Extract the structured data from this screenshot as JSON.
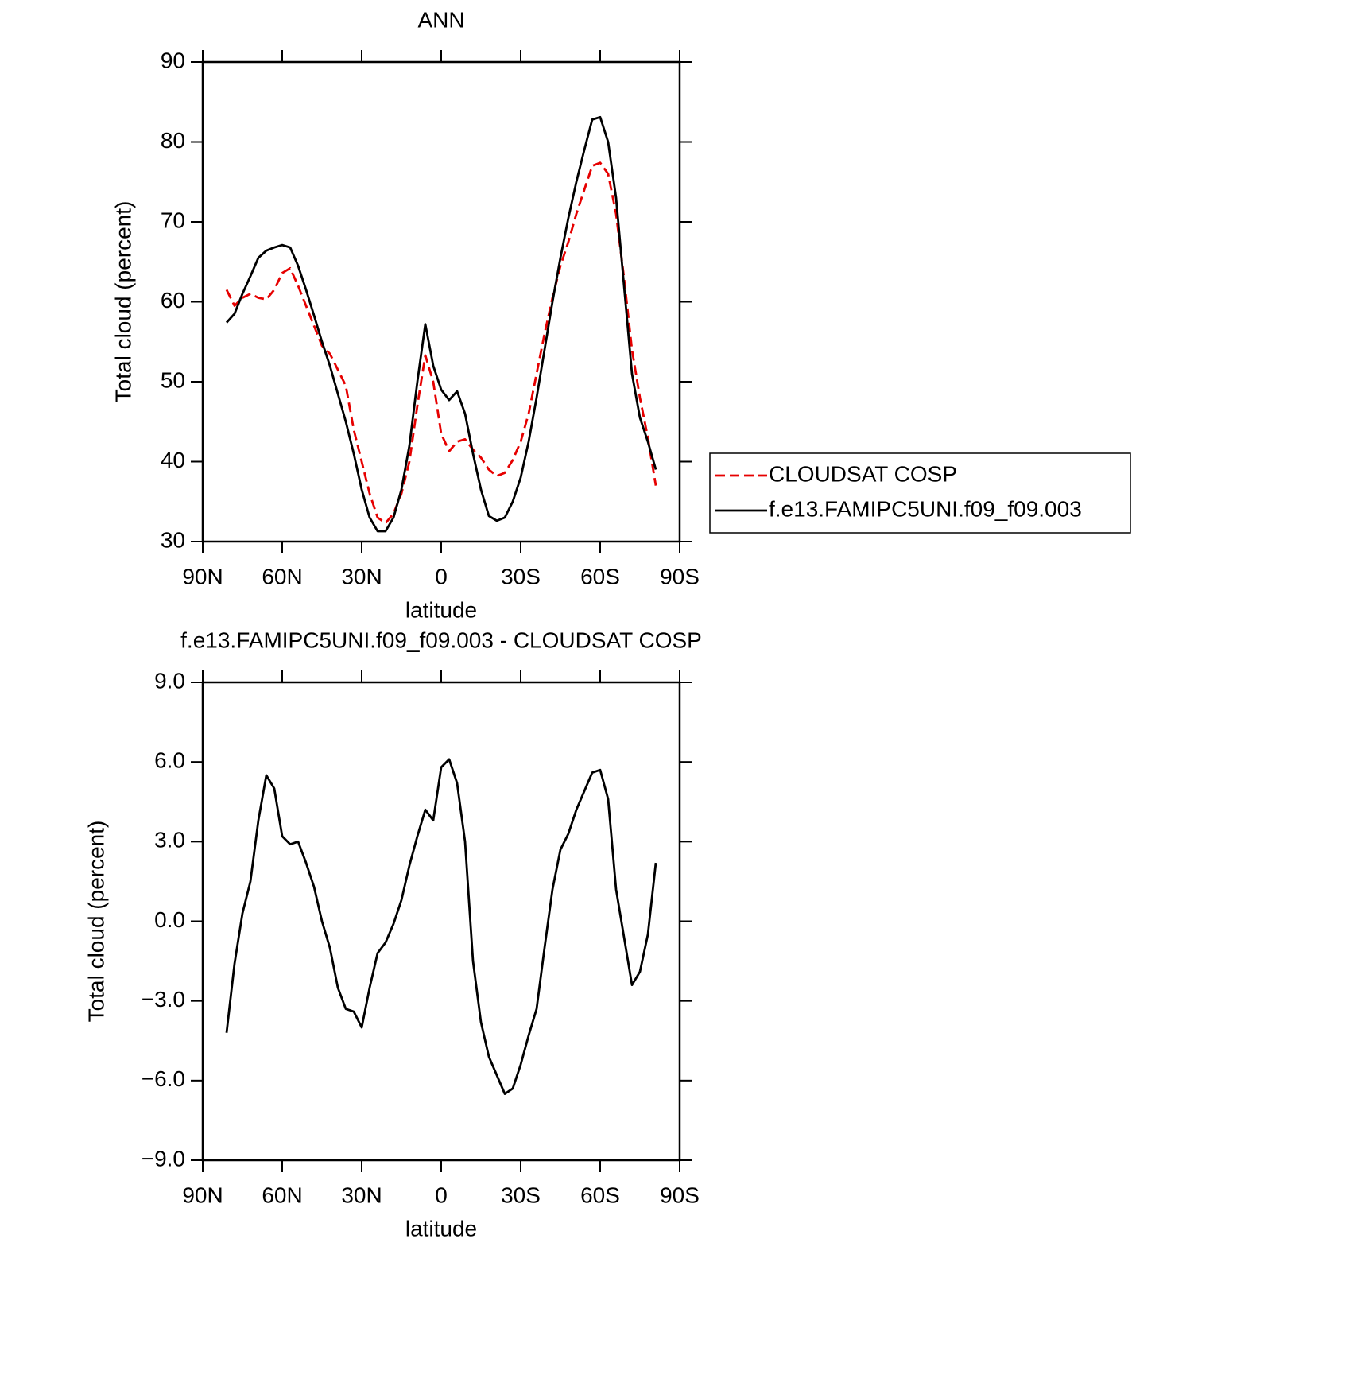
{
  "chart_data": [
    {
      "type": "line",
      "title": "ANN",
      "x_label": "latitude",
      "y_label": "Total cloud (percent)",
      "x": [
        81,
        78,
        75,
        72,
        69,
        66,
        63,
        60,
        57,
        54,
        51,
        48,
        45,
        42,
        39,
        36,
        33,
        30,
        27,
        24,
        21,
        18,
        15,
        12,
        9,
        6,
        3,
        0,
        -3,
        -6,
        -9,
        -12,
        -15,
        -18,
        -21,
        -24,
        -27,
        -30,
        -33,
        -36,
        -39,
        -42,
        -45,
        -48,
        -51,
        -54,
        -57,
        -60,
        -63,
        -66,
        -69,
        -72,
        -75,
        -78,
        -81
      ],
      "xlim": [
        90,
        -90
      ],
      "xticks": [
        {
          "value": 90,
          "label": "90N"
        },
        {
          "value": 60,
          "label": "60N"
        },
        {
          "value": 30,
          "label": "30N"
        },
        0,
        {
          "value": -30,
          "label": "30S"
        },
        {
          "value": -60,
          "label": "60S"
        },
        {
          "value": -90,
          "label": "90S"
        }
      ],
      "ylim": [
        30,
        90
      ],
      "yticks": [
        30,
        40,
        50,
        60,
        70,
        80,
        90
      ],
      "legend": "right",
      "series": [
        {
          "name": "CLOUDSAT COSP",
          "color": "#e60000",
          "linestyle": "dashed",
          "values": [
            61.5,
            59.5,
            60.5,
            61,
            60.5,
            60.3,
            61.5,
            63.6,
            64.2,
            62,
            59.5,
            57,
            54.5,
            53.5,
            51.5,
            49.5,
            44,
            40,
            36,
            33,
            32.3,
            33.5,
            36,
            40,
            47,
            53.3,
            50,
            43.5,
            41.3,
            42.5,
            42.8,
            41.5,
            40.5,
            39,
            38.2,
            38.6,
            40.2,
            42.5,
            46,
            51,
            56,
            60.5,
            64.5,
            67.5,
            71,
            74,
            77,
            77.4,
            76,
            71,
            63,
            54,
            48,
            43,
            37
          ]
        },
        {
          "name": "f.e13.FAMIPC5UNI.f09_f09.003",
          "color": "#000000",
          "linestyle": "solid",
          "values": [
            57.4,
            58.5,
            61,
            63.2,
            65.5,
            66.4,
            66.8,
            67.1,
            66.8,
            64.5,
            61.5,
            58.3,
            55,
            52,
            48.5,
            45,
            41,
            36.5,
            33,
            31.3,
            31.3,
            33,
            36.5,
            42,
            50,
            57.2,
            52,
            49,
            47.7,
            48.8,
            46,
            41,
            36.5,
            33.2,
            32.6,
            33,
            35,
            38,
            42.5,
            48,
            54,
            60,
            65.5,
            70.5,
            75,
            79,
            82.8,
            83.1,
            80,
            73,
            62,
            51,
            45.5,
            42.5,
            39
          ]
        }
      ]
    },
    {
      "type": "line",
      "title": "f.e13.FAMIPC5UNI.f09_f09.003 - CLOUDSAT COSP",
      "x_label": "latitude",
      "y_label": "Total cloud (percent)",
      "x": [
        81,
        78,
        75,
        72,
        69,
        66,
        63,
        60,
        57,
        54,
        51,
        48,
        45,
        42,
        39,
        36,
        33,
        30,
        27,
        24,
        21,
        18,
        15,
        12,
        9,
        6,
        3,
        0,
        -3,
        -6,
        -9,
        -12,
        -15,
        -18,
        -21,
        -24,
        -27,
        -30,
        -33,
        -36,
        -39,
        -42,
        -45,
        -48,
        -51,
        -54,
        -57,
        -60,
        -63,
        -66,
        -69,
        -72,
        -75,
        -78,
        -81
      ],
      "xlim": [
        90,
        -90
      ],
      "xticks": [
        {
          "value": 90,
          "label": "90N"
        },
        {
          "value": 60,
          "label": "60N"
        },
        {
          "value": 30,
          "label": "30N"
        },
        0,
        {
          "value": -30,
          "label": "30S"
        },
        {
          "value": -60,
          "label": "60S"
        },
        {
          "value": -90,
          "label": "90S"
        }
      ],
      "ylim": [
        -9,
        9
      ],
      "yticks": [
        {
          "value": -9,
          "label": "−9.0"
        },
        {
          "value": -6,
          "label": "−6.0"
        },
        {
          "value": -3,
          "label": "−3.0"
        },
        {
          "value": 0,
          "label": "0.0"
        },
        {
          "value": 3,
          "label": "3.0"
        },
        {
          "value": 6,
          "label": "6.0"
        },
        {
          "value": 9,
          "label": "9.0"
        }
      ],
      "series": [
        {
          "color": "#000000",
          "linestyle": "solid",
          "values": [
            -4.2,
            -1.6,
            0.3,
            1.5,
            3.8,
            5.5,
            5.0,
            3.2,
            2.9,
            3.0,
            2.2,
            1.3,
            0.0,
            -1.0,
            -2.5,
            -3.3,
            -3.4,
            -4.0,
            -2.5,
            -1.2,
            -0.8,
            -0.1,
            0.8,
            2.1,
            3.2,
            4.2,
            3.8,
            5.8,
            6.1,
            5.2,
            3.0,
            -1.5,
            -3.8,
            -5.1,
            -5.8,
            -6.5,
            -6.3,
            -5.4,
            -4.3,
            -3.3,
            -1.0,
            1.2,
            2.7,
            3.3,
            4.2,
            4.9,
            5.6,
            5.7,
            4.6,
            1.2,
            -0.6,
            -2.4,
            -1.9,
            -0.5,
            2.2
          ]
        }
      ]
    }
  ]
}
